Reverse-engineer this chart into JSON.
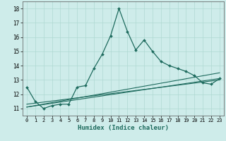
{
  "title": "",
  "xlabel": "Humidex (Indice chaleur)",
  "bg_color": "#ceecea",
  "line_color": "#1e6b5e",
  "grid_color": "#afd8d3",
  "xlim": [
    -0.5,
    23.5
  ],
  "ylim": [
    10.5,
    18.5
  ],
  "yticks": [
    11,
    12,
    13,
    14,
    15,
    16,
    17,
    18
  ],
  "xticks": [
    0,
    1,
    2,
    3,
    4,
    5,
    6,
    7,
    8,
    9,
    10,
    11,
    12,
    13,
    14,
    15,
    16,
    17,
    18,
    19,
    20,
    21,
    22,
    23
  ],
  "main_line_x": [
    0,
    1,
    2,
    3,
    4,
    5,
    6,
    7,
    8,
    9,
    10,
    11,
    12,
    13,
    14,
    15,
    16,
    17,
    18,
    19,
    20,
    21,
    22,
    23
  ],
  "main_line_y": [
    12.5,
    11.5,
    11.0,
    11.2,
    11.3,
    11.3,
    12.5,
    12.6,
    13.8,
    14.8,
    16.1,
    18.0,
    16.4,
    15.1,
    15.8,
    15.0,
    14.3,
    14.0,
    13.8,
    13.6,
    13.3,
    12.8,
    12.7,
    13.1
  ],
  "ref_lines": [
    [
      11.1,
      13.5
    ],
    [
      11.1,
      13.1
    ],
    [
      11.3,
      13.0
    ]
  ]
}
